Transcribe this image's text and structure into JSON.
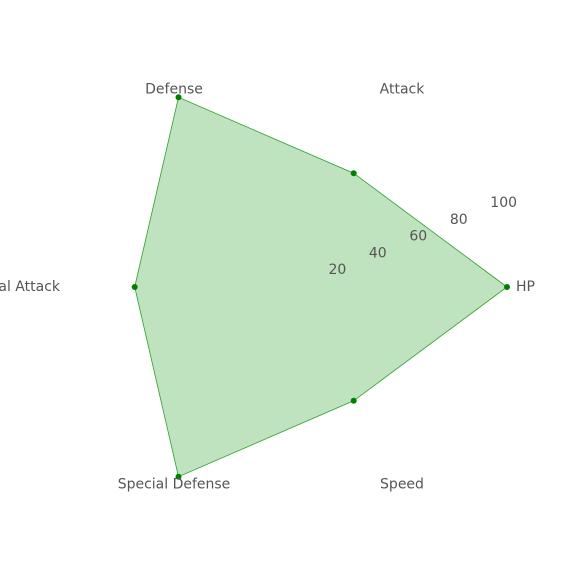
{
  "chart_data": {
    "type": "radar",
    "axes": [
      "HP",
      "Attack",
      "Defense",
      "Special Attack",
      "Special Defense",
      "Speed"
    ],
    "series": [
      {
        "values": [
          100,
          60,
          100,
          70,
          100,
          60
        ]
      }
    ],
    "radial_ticks": [
      "20",
      "40",
      "60",
      "80",
      "100"
    ],
    "radial_tick_values": [
      20,
      40,
      60,
      80,
      100
    ],
    "rlim": [
      0,
      100
    ],
    "grid": false,
    "colors": {
      "fill": "#2ca02c",
      "fill_opacity": 0.3,
      "line": "#2ca02c",
      "marker": "#008000"
    }
  }
}
